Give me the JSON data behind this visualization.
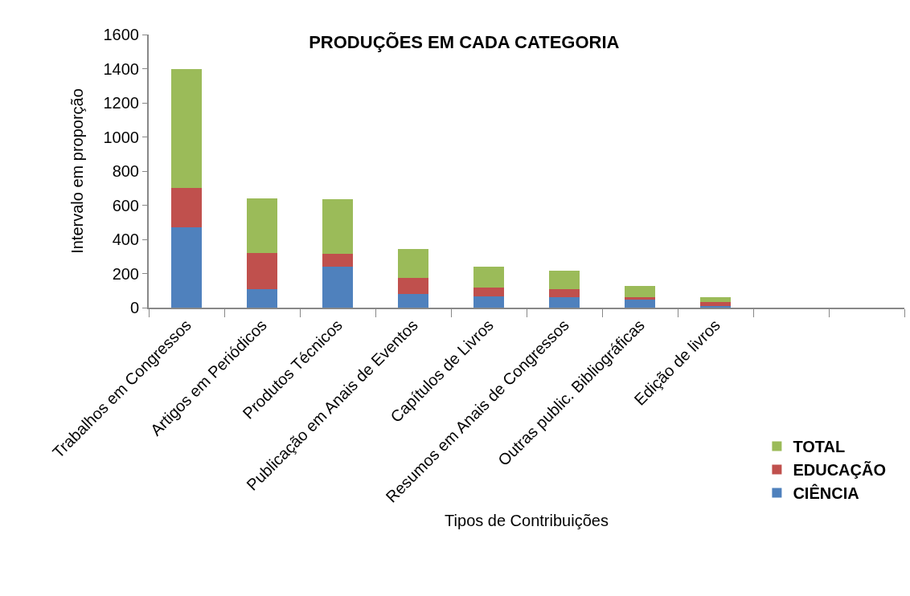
{
  "chart_data": {
    "type": "bar",
    "title": "PRODUÇÕES EM CADA CATEGORIA",
    "xlabel": "Tipos de Contribuições",
    "ylabel": "Intervalo em proporção",
    "categories": [
      "Trabalhos em Congressos",
      "Artigos em Periódicos",
      "Produtos Técnicos",
      "Publicação em Anais de Eventos",
      "Capítulos de Livros",
      "Resumos em Anais de Congressos",
      "Outras public. Bibliográficas",
      "Edição de livros",
      null,
      null
    ],
    "series": [
      {
        "name": "CIÊNCIA",
        "color": "#4f81bd",
        "values": [
          470,
          110,
          240,
          78,
          64,
          63,
          49,
          8,
          null,
          null
        ]
      },
      {
        "name": "EDUCAÇÃO",
        "color": "#c0504d",
        "values": [
          230,
          210,
          75,
          94,
          56,
          43,
          12,
          23,
          null,
          null
        ]
      },
      {
        "name": "TOTAL",
        "color": "#9bbb59",
        "values": [
          700,
          320,
          318,
          173,
          122,
          110,
          64,
          32,
          null,
          null
        ]
      }
    ],
    "stacked": true,
    "ylim": [
      0,
      1600
    ],
    "yticks": [
      0,
      200,
      400,
      600,
      800,
      1000,
      1200,
      1400,
      1600
    ],
    "legend": "bottom right"
  }
}
